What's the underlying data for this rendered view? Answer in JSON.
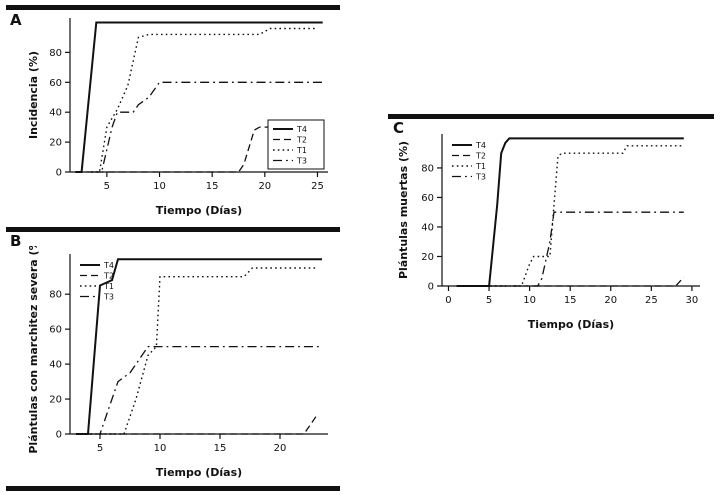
{
  "accent_color": "#111111",
  "panels": [
    {
      "label": "A"
    },
    {
      "label": "B"
    },
    {
      "label": "C"
    }
  ],
  "chart_data": [
    {
      "type": "line",
      "panel": "A",
      "title": "",
      "xlabel": "Tiempo (Días)",
      "ylabel": "Incidencia (%)",
      "xlim": [
        1.5,
        26
      ],
      "ylim": [
        0,
        103
      ],
      "xticks": [
        5,
        10,
        15,
        20,
        25
      ],
      "yticks": [
        0,
        20,
        40,
        60,
        80
      ],
      "grid": false,
      "legend": {
        "position": "bottom-right",
        "box": true
      },
      "series": [
        {
          "name": "T4",
          "style": "solid",
          "points": [
            [
              2,
              0
            ],
            [
              2.6,
              0
            ],
            [
              4,
              100
            ],
            [
              25.5,
              100
            ]
          ]
        },
        {
          "name": "T2",
          "style": "dashed",
          "points": [
            [
              3,
              0
            ],
            [
              17.5,
              0
            ],
            [
              18,
              5
            ],
            [
              19,
              28
            ],
            [
              19.5,
              30
            ],
            [
              25.5,
              30
            ]
          ]
        },
        {
          "name": "T1",
          "style": "dotted",
          "points": [
            [
              3.5,
              0
            ],
            [
              4.3,
              0
            ],
            [
              5,
              30
            ],
            [
              6,
              42
            ],
            [
              7,
              58
            ],
            [
              8,
              90
            ],
            [
              9,
              92
            ],
            [
              19.5,
              92
            ],
            [
              20.5,
              96
            ],
            [
              25,
              96
            ]
          ]
        },
        {
          "name": "T3",
          "style": "dashdot",
          "points": [
            [
              3.5,
              0
            ],
            [
              4.5,
              0
            ],
            [
              5.5,
              30
            ],
            [
              6,
              40
            ],
            [
              7.5,
              40
            ],
            [
              8,
              45
            ],
            [
              9,
              50
            ],
            [
              9.5,
              55
            ],
            [
              10,
              60
            ],
            [
              25.5,
              60
            ]
          ]
        }
      ]
    },
    {
      "type": "line",
      "panel": "B",
      "title": "",
      "xlabel": "Tiempo (Días)",
      "ylabel": "Plántulas con marchitez severa (%)",
      "xlim": [
        2.5,
        24
      ],
      "ylim": [
        0,
        103
      ],
      "xticks": [
        5,
        10,
        15,
        20
      ],
      "yticks": [
        0,
        20,
        40,
        60,
        80
      ],
      "grid": false,
      "legend": {
        "position": "top-left",
        "box": false
      },
      "series": [
        {
          "name": "T4",
          "style": "solid",
          "points": [
            [
              3,
              0
            ],
            [
              4,
              0
            ],
            [
              5,
              85
            ],
            [
              6,
              88
            ],
            [
              6.5,
              100
            ],
            [
              23.5,
              100
            ]
          ]
        },
        {
          "name": "T2",
          "style": "dashed",
          "points": [
            [
              3,
              0
            ],
            [
              22,
              0
            ],
            [
              23,
              10
            ]
          ]
        },
        {
          "name": "T1",
          "style": "dotted",
          "points": [
            [
              3,
              0
            ],
            [
              7,
              0
            ],
            [
              8,
              20
            ],
            [
              9,
              45
            ],
            [
              9.7,
              50
            ],
            [
              10,
              90
            ],
            [
              17,
              90
            ],
            [
              17.7,
              95
            ],
            [
              23,
              95
            ]
          ]
        },
        {
          "name": "T3",
          "style": "dashdot",
          "points": [
            [
              3,
              0
            ],
            [
              5,
              0
            ],
            [
              6,
              20
            ],
            [
              6.5,
              30
            ],
            [
              7.5,
              35
            ],
            [
              8,
              40
            ],
            [
              9,
              50
            ],
            [
              23.5,
              50
            ]
          ]
        }
      ]
    },
    {
      "type": "line",
      "panel": "C",
      "title": "",
      "xlabel": "Tiempo (Días)",
      "ylabel": "Plántulas muertas (%)",
      "xlim": [
        -0.8,
        31
      ],
      "ylim": [
        0,
        103
      ],
      "xticks": [
        0,
        5,
        10,
        15,
        20,
        25,
        30
      ],
      "yticks": [
        0,
        20,
        40,
        60,
        80
      ],
      "grid": false,
      "legend": {
        "position": "top-left",
        "box": false
      },
      "series": [
        {
          "name": "T4",
          "style": "solid",
          "points": [
            [
              1,
              0
            ],
            [
              5,
              0
            ],
            [
              6,
              55
            ],
            [
              6.5,
              90
            ],
            [
              7,
              97
            ],
            [
              7.5,
              100
            ],
            [
              29,
              100
            ]
          ]
        },
        {
          "name": "T2",
          "style": "dashed",
          "points": [
            [
              1,
              0
            ],
            [
              28,
              0
            ],
            [
              29,
              6
            ]
          ]
        },
        {
          "name": "T1",
          "style": "dotted",
          "points": [
            [
              1,
              0
            ],
            [
              9,
              0
            ],
            [
              10,
              15
            ],
            [
              10.5,
              20
            ],
            [
              12.5,
              20
            ],
            [
              13,
              55
            ],
            [
              13.5,
              88
            ],
            [
              14,
              90
            ],
            [
              21.5,
              90
            ],
            [
              22,
              95
            ],
            [
              29,
              95
            ]
          ]
        },
        {
          "name": "T3",
          "style": "dashdot",
          "points": [
            [
              1,
              0
            ],
            [
              11,
              0
            ],
            [
              11.5,
              5
            ],
            [
              12.5,
              30
            ],
            [
              13,
              50
            ],
            [
              29,
              50
            ]
          ]
        }
      ]
    }
  ]
}
